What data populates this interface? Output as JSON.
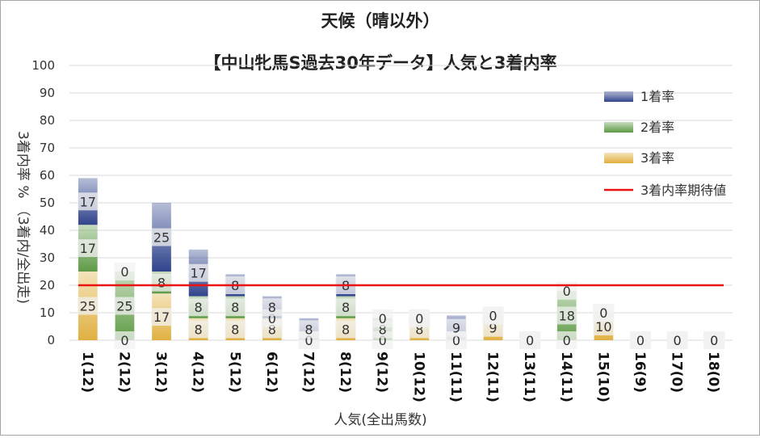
{
  "chart_data": {
    "type": "bar",
    "stacked": true,
    "title": "天候（晴以外）",
    "subtitle": "【中山牝馬S過去30年データ】人気と3着内率",
    "xlabel": "人気(全出馬数)",
    "ylabel": "3着内率 %  （3着内/全出走)",
    "ylim": [
      0,
      100
    ],
    "yticks": [
      0,
      10,
      20,
      30,
      40,
      50,
      60,
      70,
      80,
      90,
      100
    ],
    "grid": true,
    "legend_position": "right",
    "categories": [
      "1(12)",
      "2(12)",
      "3(12)",
      "4(12)",
      "5(12)",
      "6(12)",
      "7(12)",
      "8(12)",
      "9(12)",
      "10(12)",
      "11(11)",
      "12(11)",
      "13(11)",
      "14(11)",
      "15(10)",
      "16(9)",
      "17(0)",
      "18(0)"
    ],
    "series": [
      {
        "name": "3着率",
        "color": "#e0b040",
        "values": [
          25,
          0,
          17,
          8,
          8,
          8,
          0,
          8,
          0,
          8,
          0,
          9,
          0,
          0,
          10,
          0,
          0,
          0
        ]
      },
      {
        "name": "2着率",
        "color": "#5e9b45",
        "values": [
          17,
          25,
          8,
          8,
          8,
          0,
          0,
          8,
          8,
          0,
          0,
          0,
          0,
          18,
          0,
          0,
          0,
          0
        ]
      },
      {
        "name": "1着率",
        "color": "#30448c",
        "values": [
          17,
          0,
          25,
          17,
          8,
          8,
          8,
          8,
          0,
          0,
          9,
          0,
          0,
          0,
          0,
          0,
          0,
          0
        ]
      }
    ],
    "reference_line": {
      "name": "3着内率期待値",
      "value": 20,
      "color": "#ee1111"
    }
  }
}
